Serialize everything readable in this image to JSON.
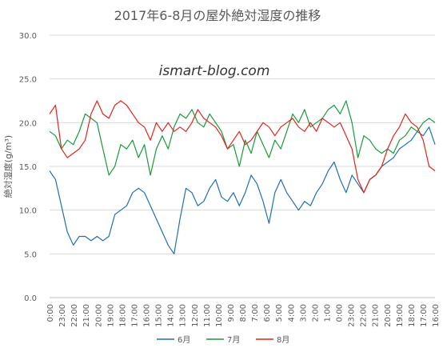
{
  "chart_data": {
    "type": "line",
    "title": "2017年6-8月の屋外絶対湿度の推移",
    "watermark": "ismart-blog.com",
    "xlabel": "",
    "ylabel": "絶対湿度(g/m³)",
    "ylim": [
      0,
      30
    ],
    "yticks": [
      "0.0",
      "5.0",
      "10.0",
      "15.0",
      "20.0",
      "25.0",
      "30.0"
    ],
    "xticks": [
      "0:00",
      "23:00",
      "22:00",
      "21:00",
      "20:00",
      "19:00",
      "18:00",
      "17:00",
      "16:00",
      "15:00",
      "14:00",
      "13:00",
      "12:00",
      "11:00",
      "10:00",
      "9:00",
      "8:00",
      "7:00",
      "6:00",
      "5:00",
      "4:00",
      "3:00",
      "2:00",
      "1:00",
      "0:00",
      "23:00",
      "22:00",
      "21:00",
      "20:00",
      "19:00",
      "18:00",
      "17:00",
      "16:00"
    ],
    "grid": "horizontal",
    "legend": "bottom",
    "colors": {
      "6月": "#1f6fb5",
      "7月": "#1a9a3a",
      "8月": "#e3231b"
    },
    "series": [
      {
        "name": "6月",
        "color": "#1f6fb5",
        "values": [
          14.5,
          13.5,
          10.5,
          7.5,
          6.0,
          7.0,
          7.0,
          6.5,
          7.0,
          6.5,
          7.0,
          9.5,
          10.0,
          10.5,
          12.0,
          12.5,
          12.0,
          10.5,
          9.0,
          7.5,
          6.0,
          5.0,
          9.0,
          12.5,
          12.0,
          10.5,
          11.0,
          12.5,
          13.5,
          11.5,
          11.0,
          12.0,
          10.5,
          12.0,
          14.0,
          13.0,
          11.0,
          8.5,
          12.0,
          13.5,
          12.0,
          11.0,
          10.0,
          11.0,
          10.5,
          12.0,
          13.0,
          14.5,
          15.5,
          13.5,
          12.0,
          14.0,
          13.0,
          12.0,
          13.5,
          14.0,
          15.0,
          15.5,
          16.0,
          17.0,
          17.5,
          18.0,
          19.0,
          18.5,
          19.5,
          17.5
        ]
      },
      {
        "name": "7月",
        "color": "#1a9a3a",
        "values": [
          19.0,
          18.5,
          17.0,
          18.0,
          17.5,
          19.0,
          21.0,
          20.5,
          20.0,
          17.0,
          14.0,
          15.0,
          17.5,
          17.0,
          18.0,
          16.0,
          17.5,
          14.0,
          17.0,
          18.5,
          17.0,
          19.5,
          21.0,
          20.5,
          21.5,
          20.0,
          19.5,
          21.0,
          20.0,
          19.0,
          17.0,
          17.5,
          15.0,
          18.0,
          16.5,
          19.0,
          17.5,
          16.0,
          18.0,
          17.0,
          19.0,
          21.0,
          20.0,
          21.5,
          19.5,
          20.0,
          20.5,
          21.5,
          22.0,
          21.0,
          22.5,
          20.0,
          16.0,
          18.5,
          18.0,
          17.0,
          16.5,
          17.0,
          16.5,
          18.0,
          18.5,
          19.5,
          19.0,
          20.0,
          20.5,
          20.0
        ]
      },
      {
        "name": "8月",
        "color": "#e3231b",
        "values": [
          21.0,
          22.0,
          17.0,
          16.0,
          16.5,
          17.0,
          18.0,
          21.0,
          22.5,
          21.0,
          20.5,
          22.0,
          22.5,
          22.0,
          21.0,
          20.0,
          19.5,
          18.0,
          20.0,
          19.0,
          20.0,
          19.0,
          19.5,
          19.0,
          20.0,
          21.5,
          20.5,
          20.0,
          19.5,
          18.5,
          17.0,
          18.0,
          19.0,
          17.5,
          18.0,
          19.0,
          20.0,
          19.5,
          18.5,
          19.5,
          20.0,
          20.5,
          19.5,
          19.0,
          20.0,
          19.0,
          20.5,
          20.0,
          19.5,
          20.0,
          18.5,
          17.0,
          13.5,
          12.0,
          13.5,
          14.0,
          15.0,
          17.0,
          18.5,
          19.5,
          21.0,
          20.0,
          19.5,
          18.0,
          15.0,
          14.5
        ]
      }
    ]
  }
}
